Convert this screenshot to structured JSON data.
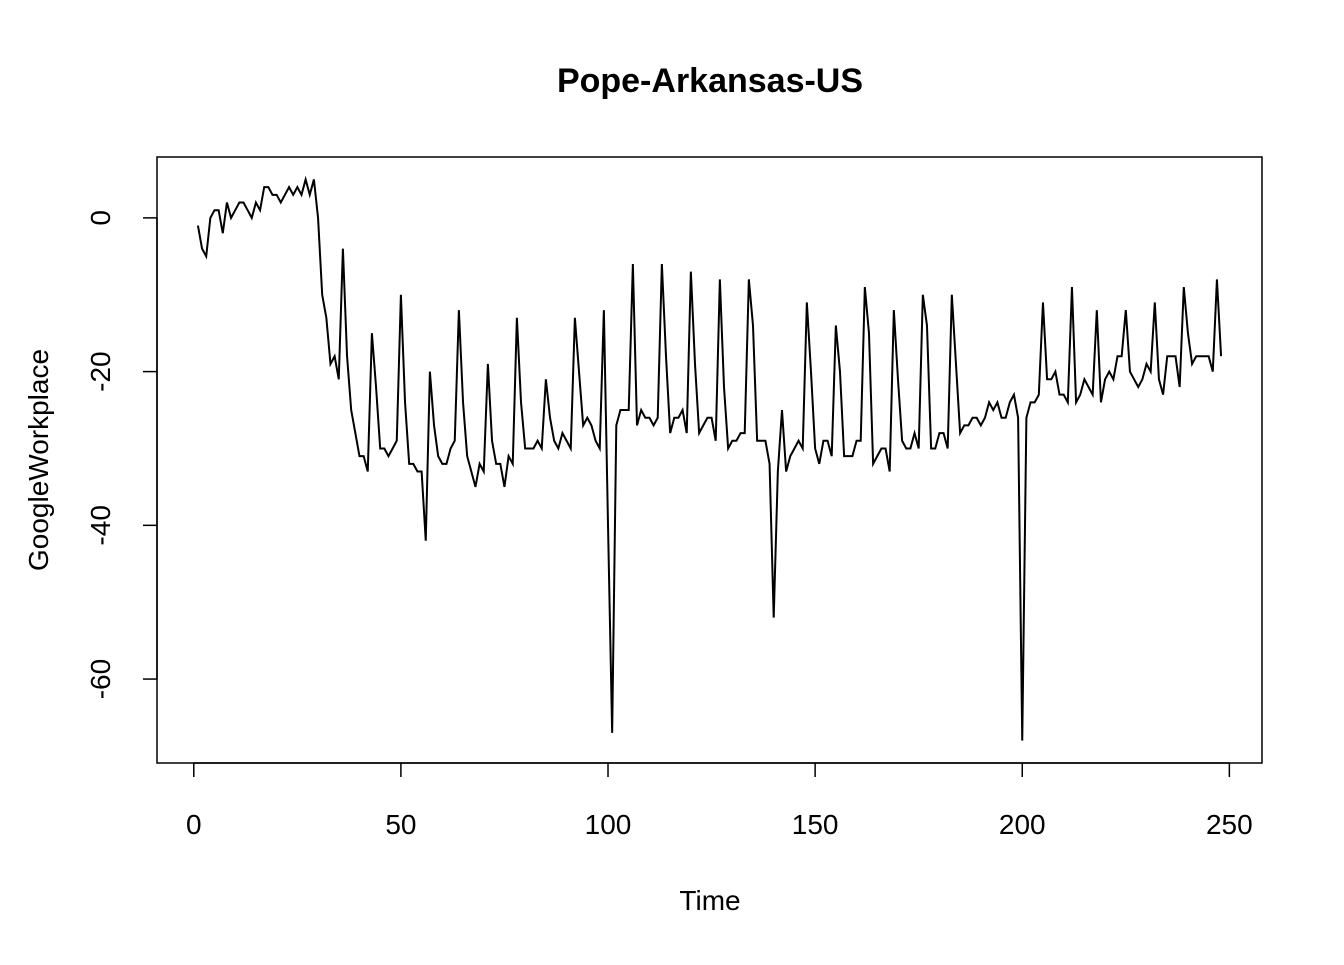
{
  "chart_data": {
    "type": "line",
    "title": "Pope-Arkansas-US",
    "x_label": "Time",
    "y_label": "GoogleWorkplace",
    "x": [
      1,
      2,
      3,
      4,
      5,
      6,
      7,
      8,
      9,
      10,
      11,
      12,
      13,
      14,
      15,
      16,
      17,
      18,
      19,
      20,
      21,
      22,
      23,
      24,
      25,
      26,
      27,
      28,
      29,
      30,
      31,
      32,
      33,
      34,
      35,
      36,
      37,
      38,
      39,
      40,
      41,
      42,
      43,
      44,
      45,
      46,
      47,
      48,
      49,
      50,
      51,
      52,
      53,
      54,
      55,
      56,
      57,
      58,
      59,
      60,
      61,
      62,
      63,
      64,
      65,
      66,
      67,
      68,
      69,
      70,
      71,
      72,
      73,
      74,
      75,
      76,
      77,
      78,
      79,
      80,
      81,
      82,
      83,
      84,
      85,
      86,
      87,
      88,
      89,
      90,
      91,
      92,
      93,
      94,
      95,
      96,
      97,
      98,
      99,
      100,
      101,
      102,
      103,
      104,
      105,
      106,
      107,
      108,
      109,
      110,
      111,
      112,
      113,
      114,
      115,
      116,
      117,
      118,
      119,
      120,
      121,
      122,
      123,
      124,
      125,
      126,
      127,
      128,
      129,
      130,
      131,
      132,
      133,
      134,
      135,
      136,
      137,
      138,
      139,
      140,
      141,
      142,
      143,
      144,
      145,
      146,
      147,
      148,
      149,
      150,
      151,
      152,
      153,
      154,
      155,
      156,
      157,
      158,
      159,
      160,
      161,
      162,
      163,
      164,
      165,
      166,
      167,
      168,
      169,
      170,
      171,
      172,
      173,
      174,
      175,
      176,
      177,
      178,
      179,
      180,
      181,
      182,
      183,
      184,
      185,
      186,
      187,
      188,
      189,
      190,
      191,
      192,
      193,
      194,
      195,
      196,
      197,
      198,
      199,
      200,
      201,
      202,
      203,
      204,
      205,
      206,
      207,
      208,
      209,
      210,
      211,
      212,
      213,
      214,
      215,
      216,
      217,
      218,
      219,
      220,
      221,
      222,
      223,
      224,
      225,
      226,
      227,
      228,
      229,
      230,
      231,
      232,
      233,
      234,
      235,
      236,
      237,
      238,
      239,
      240,
      241,
      242,
      243,
      244,
      245,
      246,
      247,
      248
    ],
    "values": [
      -1,
      -4,
      -5,
      0,
      1,
      1,
      -2,
      2,
      0,
      1,
      2,
      2,
      1,
      0,
      2,
      1,
      4,
      4,
      3,
      3,
      2,
      3,
      4,
      3,
      4,
      3,
      5,
      3,
      5,
      0,
      -10,
      -13,
      -19,
      -18,
      -21,
      -4,
      -18,
      -25,
      -28,
      -31,
      -31,
      -33,
      -15,
      -22,
      -30,
      -30,
      -31,
      -30,
      -29,
      -10,
      -24,
      -32,
      -32,
      -33,
      -33,
      -42,
      -20,
      -27,
      -31,
      -32,
      -32,
      -30,
      -29,
      -12,
      -24,
      -31,
      -33,
      -35,
      -32,
      -33,
      -19,
      -29,
      -32,
      -32,
      -35,
      -31,
      -32,
      -13,
      -24,
      -30,
      -30,
      -30,
      -29,
      -30,
      -21,
      -26,
      -29,
      -30,
      -28,
      -29,
      -30,
      -13,
      -20,
      -27,
      -26,
      -27,
      -29,
      -30,
      -12,
      -40,
      -67,
      -27,
      -25,
      -25,
      -25,
      -6,
      -27,
      -25,
      -26,
      -26,
      -27,
      -26,
      -6,
      -18,
      -28,
      -26,
      -26,
      -25,
      -28,
      -7,
      -19,
      -28,
      -27,
      -26,
      -26,
      -29,
      -8,
      -22,
      -30,
      -29,
      -29,
      -28,
      -28,
      -8,
      -14,
      -29,
      -29,
      -29,
      -32,
      -52,
      -33,
      -25,
      -33,
      -31,
      -30,
      -29,
      -30,
      -11,
      -20,
      -30,
      -32,
      -29,
      -29,
      -31,
      -14,
      -20,
      -31,
      -31,
      -31,
      -29,
      -29,
      -9,
      -15,
      -32,
      -31,
      -30,
      -30,
      -33,
      -12,
      -21,
      -29,
      -30,
      -30,
      -28,
      -30,
      -10,
      -14,
      -30,
      -30,
      -28,
      -28,
      -30,
      -10,
      -19,
      -28,
      -27,
      -27,
      -26,
      -26,
      -27,
      -26,
      -24,
      -25,
      -24,
      -26,
      -26,
      -24,
      -23,
      -26,
      -68,
      -26,
      -24,
      -24,
      -23,
      -11,
      -21,
      -21,
      -20,
      -23,
      -23,
      -24,
      -9,
      -24,
      -23,
      -21,
      -22,
      -23,
      -12,
      -24,
      -21,
      -20,
      -21,
      -18,
      -18,
      -12,
      -20,
      -21,
      -22,
      -21,
      -19,
      -20,
      -11,
      -21,
      -23,
      -18,
      -18,
      -18,
      -22,
      -9,
      -15,
      -19,
      -18,
      -18,
      -18,
      -18,
      -20,
      -8,
      -18
    ],
    "color": "#000000",
    "xlim": [
      -8.88,
      257.88
    ],
    "xticks": [
      0,
      50,
      100,
      150,
      200,
      250
    ],
    "ylim": [
      -70.92,
      7.92
    ],
    "yticks": [
      -60,
      -40,
      -20,
      0
    ]
  }
}
